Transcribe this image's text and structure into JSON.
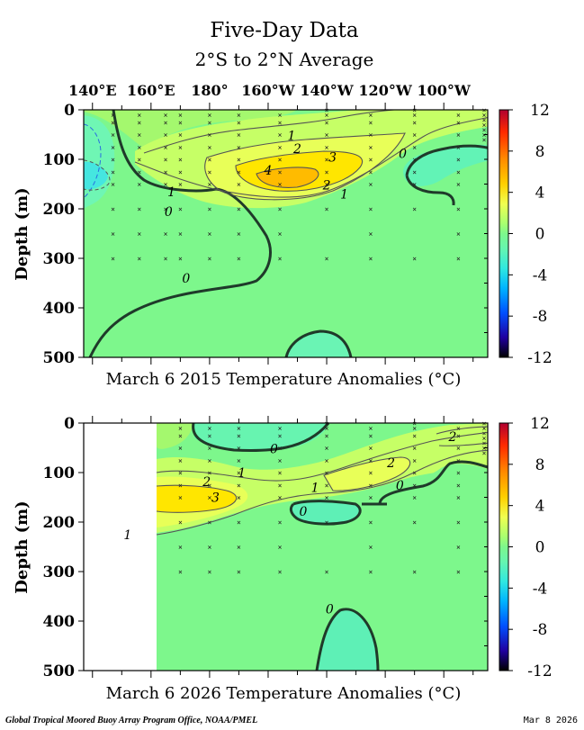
{
  "figure": {
    "title": "Five-Day Data",
    "subtitle": "2°S to 2°N Average",
    "footer_left": "Global Tropical Moored Buoy Array Program Office, NOAA/PMEL",
    "footer_right": "Mar  8 2026",
    "colors": {
      "background": "#7df78c",
      "white_missing": "#ffffff",
      "text": "#000000"
    }
  },
  "chart_data": [
    {
      "type": "heatmap",
      "panel": "top",
      "title": "March 6 2015 Temperature Anomalies (°C)",
      "xlabel": "",
      "ylabel": "Depth (m)",
      "x_tick_labels": [
        "140°E",
        "160°E",
        "180°",
        "160°W",
        "140°W",
        "120°W",
        "100°W"
      ],
      "x_tick_lon": [
        140,
        160,
        180,
        200,
        220,
        240,
        260
      ],
      "xlim_lon": [
        137,
        275
      ],
      "ylim_depth": [
        0,
        500
      ],
      "y_tick_labels": [
        "0",
        "100",
        "200",
        "300",
        "400",
        "500"
      ],
      "y_tick_values": [
        0,
        100,
        200,
        300,
        400,
        500
      ],
      "contour_labels": [
        {
          "text": "1",
          "lon": 208,
          "depth": 52
        },
        {
          "text": "2",
          "lon": 210,
          "depth": 78
        },
        {
          "text": "3",
          "lon": 222,
          "depth": 95
        },
        {
          "text": "4",
          "lon": 200,
          "depth": 122
        },
        {
          "text": "2",
          "lon": 220,
          "depth": 152
        },
        {
          "text": "1",
          "lon": 226,
          "depth": 170
        },
        {
          "text": "1",
          "lon": 167,
          "depth": 165
        },
        {
          "text": "0",
          "lon": 166,
          "depth": 205
        },
        {
          "text": "0",
          "lon": 172,
          "depth": 340
        },
        {
          "text": "0",
          "lon": 246,
          "depth": 88
        }
      ]
    },
    {
      "type": "heatmap",
      "panel": "bottom",
      "title": "March 6 2026 Temperature Anomalies (°C)",
      "xlabel": "",
      "ylabel": "Depth (m)",
      "x_tick_lon": [
        140,
        160,
        180,
        200,
        220,
        240,
        260
      ],
      "xlim_lon": [
        137,
        275
      ],
      "ylim_depth": [
        0,
        500
      ],
      "y_tick_labels": [
        "0",
        "100",
        "200",
        "300",
        "400",
        "500"
      ],
      "y_tick_values": [
        0,
        100,
        200,
        300,
        400,
        500
      ],
      "missing_data_before_lon": 165,
      "contour_labels": [
        {
          "text": "0",
          "lon": 202,
          "depth": 52
        },
        {
          "text": "1",
          "lon": 191,
          "depth": 100
        },
        {
          "text": "2",
          "lon": 179,
          "depth": 118
        },
        {
          "text": "3",
          "lon": 182,
          "depth": 150
        },
        {
          "text": "1",
          "lon": 216,
          "depth": 130
        },
        {
          "text": "2",
          "lon": 242,
          "depth": 80
        },
        {
          "text": "0",
          "lon": 245,
          "depth": 125
        },
        {
          "text": "0",
          "lon": 212,
          "depth": 178
        },
        {
          "text": "2",
          "lon": 263,
          "depth": 27
        },
        {
          "text": "1",
          "lon": 152,
          "depth": 225
        },
        {
          "text": "0",
          "lon": 221,
          "depth": 375
        }
      ]
    },
    {
      "type": "colorbar",
      "ticks": [
        "12",
        "8",
        "4",
        "0",
        "-4",
        "-8",
        "-12"
      ],
      "values": [
        12,
        8,
        4,
        0,
        -4,
        -8,
        -12
      ],
      "colors": [
        "#c8001f",
        "#ff4a00",
        "#ffaa00",
        "#ffe100",
        "#e6ff6a",
        "#a6ff6e",
        "#7df78c",
        "#6ff6a6",
        "#5ef0d6",
        "#00c8ff",
        "#0070ff",
        "#1a00c8",
        "#000080"
      ]
    }
  ]
}
